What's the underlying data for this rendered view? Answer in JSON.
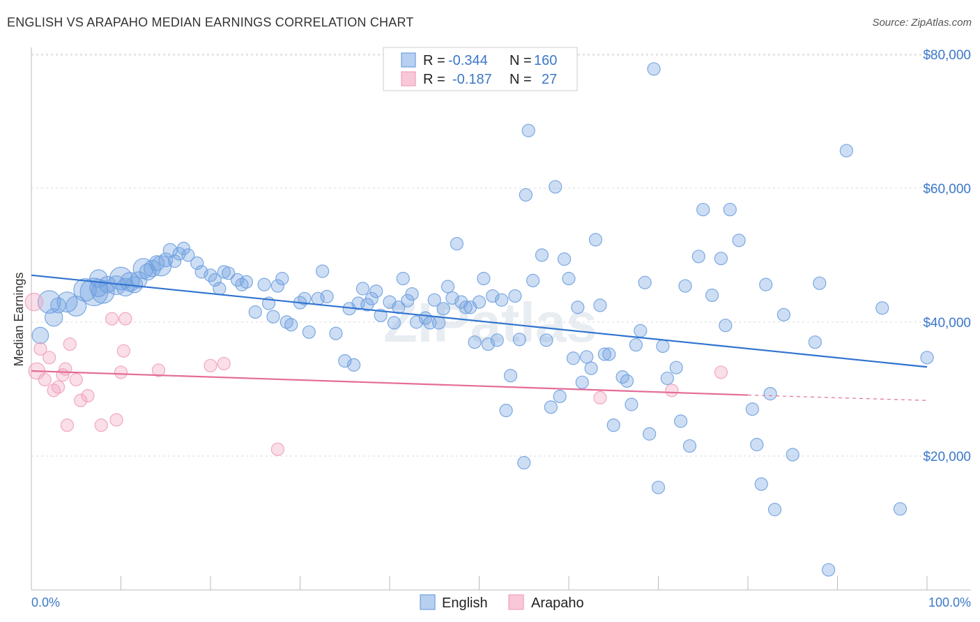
{
  "title": "ENGLISH VS ARAPAHO MEDIAN EARNINGS CORRELATION CHART",
  "source": "Source: ZipAtlas.com",
  "watermark": "ZIPatlas",
  "colors": {
    "english": "#6fa0e0",
    "english_line": "#2f73d0",
    "arapaho": "#f0a0bc",
    "arapaho_line": "#e46c96",
    "tick_text": "#3b78c9"
  },
  "legend": {
    "rows": [
      {
        "r_label": "R = ",
        "r_value": "-0.344",
        "n_label": "N = ",
        "n_value": "160"
      },
      {
        "r_label": "R = ",
        "r_value": "-0.187",
        "n_label": "N = ",
        "n_value": "27"
      }
    ]
  },
  "bottom_legend": {
    "english": "English",
    "arapaho": "Arapaho"
  },
  "chart_data": {
    "type": "scatter",
    "title": "ENGLISH VS ARAPAHO MEDIAN EARNINGS CORRELATION CHART",
    "xlabel": "",
    "ylabel": "Median Earnings",
    "xlim": [
      0,
      100
    ],
    "ylim": [
      0,
      80000
    ],
    "x_tick_labels": [
      "0.0%",
      "100.0%"
    ],
    "y_ticks": [
      20000,
      40000,
      60000,
      80000
    ],
    "y_tick_labels": [
      "$20,000",
      "$40,000",
      "$60,000",
      "$80,000"
    ],
    "grid": true,
    "series": [
      {
        "name": "English",
        "r": -0.344,
        "n": 160,
        "trend": {
          "x": [
            0,
            100
          ],
          "y": [
            47000,
            33300
          ]
        },
        "points": [
          [
            1,
            38000,
            1.3
          ],
          [
            2,
            43000,
            1.8
          ],
          [
            2.5,
            40700,
            1.4
          ],
          [
            3,
            42500,
            1.2
          ],
          [
            4,
            43000,
            1.6
          ],
          [
            5,
            42400,
            1.6
          ],
          [
            6,
            44800,
            1.8
          ],
          [
            7,
            44500,
            2.2
          ],
          [
            7.5,
            45100,
            1.4
          ],
          [
            8,
            44500,
            1.8
          ],
          [
            7.5,
            46500,
            1.4
          ],
          [
            8.5,
            45600,
            1.3
          ],
          [
            9.5,
            45500,
            1.5
          ],
          [
            10,
            46500,
            1.8
          ],
          [
            10.5,
            45200,
            1.4
          ],
          [
            11,
            46000,
            1.5
          ],
          [
            11.5,
            45600,
            1.3
          ],
          [
            12,
            46300,
            1.3
          ],
          [
            12.5,
            48000,
            1.6
          ],
          [
            13,
            47500,
            1.3
          ],
          [
            13.5,
            48000,
            1.3
          ],
          [
            14,
            48800,
            1.2
          ],
          [
            14.5,
            48400,
            1.6
          ],
          [
            15,
            49300,
            1.1
          ],
          [
            15.5,
            50700,
            1.1
          ],
          [
            16,
            49100,
            1.0
          ],
          [
            16.5,
            50200,
            1.0
          ],
          [
            17,
            51000,
            1.0
          ],
          [
            17.5,
            50000,
            1.0
          ],
          [
            18.5,
            48800,
            1.0
          ],
          [
            19,
            47500,
            1.0
          ],
          [
            20,
            47000,
            1.0
          ],
          [
            20.5,
            46300,
            1.0
          ],
          [
            21,
            45000,
            1.0
          ],
          [
            21.5,
            47500,
            1.0
          ],
          [
            22,
            47300,
            1.0
          ],
          [
            23,
            46300,
            1.0
          ],
          [
            23.5,
            45600,
            1.0
          ],
          [
            24,
            46000,
            1.0
          ],
          [
            25,
            41500,
            1.0
          ],
          [
            26,
            45600,
            1.0
          ],
          [
            26.5,
            42800,
            1.0
          ],
          [
            27,
            40800,
            1.0
          ],
          [
            27.5,
            45400,
            1.0
          ],
          [
            28,
            46500,
            1.0
          ],
          [
            28.5,
            40000,
            1.0
          ],
          [
            29,
            39600,
            1.0
          ],
          [
            30,
            42900,
            1.0
          ],
          [
            30.5,
            43500,
            1.0
          ],
          [
            31,
            38500,
            1.0
          ],
          [
            32,
            43500,
            1.0
          ],
          [
            32.5,
            47600,
            1.0
          ],
          [
            33,
            43800,
            1.0
          ],
          [
            34,
            38300,
            1.0
          ],
          [
            35,
            34200,
            1.0
          ],
          [
            35.5,
            42000,
            1.0
          ],
          [
            36,
            33600,
            1.0
          ],
          [
            36.5,
            42800,
            1.0
          ],
          [
            37,
            45000,
            1.0
          ],
          [
            37.5,
            42600,
            1.0
          ],
          [
            38,
            43500,
            1.0
          ],
          [
            38.5,
            44600,
            1.0
          ],
          [
            39,
            41000,
            1.0
          ],
          [
            40,
            43000,
            1.0
          ],
          [
            40.5,
            39900,
            1.0
          ],
          [
            41,
            42200,
            1.0
          ],
          [
            41.5,
            46500,
            1.0
          ],
          [
            42,
            43200,
            1.0
          ],
          [
            42.5,
            44200,
            1.0
          ],
          [
            43,
            40000,
            1.0
          ],
          [
            44,
            40600,
            1.0
          ],
          [
            44.5,
            39900,
            1.0
          ],
          [
            45,
            43300,
            1.0
          ],
          [
            45.5,
            39900,
            1.0
          ],
          [
            46,
            42000,
            1.0
          ],
          [
            46.5,
            45300,
            1.0
          ],
          [
            47,
            43600,
            1.0
          ],
          [
            47.5,
            51700,
            1.0
          ],
          [
            48,
            43000,
            1.0
          ],
          [
            48.5,
            42200,
            1.0
          ],
          [
            49,
            42200,
            1.0
          ],
          [
            49.5,
            37000,
            1.0
          ],
          [
            50,
            43000,
            1.0
          ],
          [
            50.5,
            46500,
            1.0
          ],
          [
            51,
            36700,
            1.0
          ],
          [
            51.5,
            43900,
            1.0
          ],
          [
            52,
            37300,
            1.0
          ],
          [
            52.5,
            43300,
            1.0
          ],
          [
            53,
            26800,
            1.0
          ],
          [
            53.5,
            32000,
            1.0
          ],
          [
            54,
            43900,
            1.0
          ],
          [
            54.5,
            37400,
            1.0
          ],
          [
            55,
            19000,
            1.0
          ],
          [
            55.5,
            68600,
            1.0
          ],
          [
            55.2,
            59000,
            1.0
          ],
          [
            56,
            46200,
            1.0
          ],
          [
            57,
            50000,
            1.0
          ],
          [
            57.5,
            37300,
            1.0
          ],
          [
            58,
            27300,
            1.0
          ],
          [
            58.5,
            60200,
            1.0
          ],
          [
            59,
            28900,
            1.0
          ],
          [
            59.5,
            49400,
            1.0
          ],
          [
            60,
            46500,
            1.0
          ],
          [
            60.5,
            34600,
            1.0
          ],
          [
            61,
            42200,
            1.0
          ],
          [
            61.5,
            31000,
            1.0
          ],
          [
            62,
            34800,
            1.0
          ],
          [
            62.5,
            33100,
            1.0
          ],
          [
            63,
            52300,
            1.0
          ],
          [
            63.5,
            42500,
            1.0
          ],
          [
            64,
            35200,
            1.0
          ],
          [
            64.5,
            35200,
            1.0
          ],
          [
            65,
            24600,
            1.0
          ],
          [
            66,
            31800,
            1.0
          ],
          [
            66.5,
            31200,
            1.0
          ],
          [
            67,
            27700,
            1.0
          ],
          [
            67.5,
            36600,
            1.0
          ],
          [
            68,
            38700,
            1.0
          ],
          [
            68.5,
            45900,
            1.0
          ],
          [
            69,
            23300,
            1.0
          ],
          [
            69.5,
            77800,
            1.0
          ],
          [
            70,
            15300,
            1.0
          ],
          [
            70.5,
            36400,
            1.0
          ],
          [
            71,
            31600,
            1.0
          ],
          [
            72,
            33200,
            1.0
          ],
          [
            72.5,
            25200,
            1.0
          ],
          [
            73,
            45400,
            1.0
          ],
          [
            73.5,
            21500,
            1.0
          ],
          [
            74.5,
            49800,
            1.0
          ],
          [
            75,
            56800,
            1.0
          ],
          [
            76,
            44000,
            1.0
          ],
          [
            77,
            49500,
            1.0
          ],
          [
            77.5,
            39500,
            1.0
          ],
          [
            78,
            56800,
            1.0
          ],
          [
            79,
            52200,
            1.0
          ],
          [
            80.5,
            27000,
            1.0
          ],
          [
            81,
            21700,
            1.0
          ],
          [
            81.5,
            15800,
            1.0
          ],
          [
            82,
            45600,
            1.0
          ],
          [
            82.5,
            29300,
            1.0
          ],
          [
            83,
            12000,
            1.0
          ],
          [
            84,
            41100,
            1.0
          ],
          [
            85,
            20200,
            1.0
          ],
          [
            87.5,
            37000,
            1.0
          ],
          [
            88,
            45800,
            1.0
          ],
          [
            89,
            3000,
            1.0
          ],
          [
            91,
            65600,
            1.0
          ],
          [
            95,
            42100,
            1.0
          ],
          [
            97,
            12100,
            1.0
          ],
          [
            100,
            34700,
            1.0
          ]
        ]
      },
      {
        "name": "Arapaho",
        "r": -0.187,
        "n": 27,
        "trend": {
          "x": [
            0,
            80
          ],
          "y": [
            32700,
            29100
          ]
        },
        "trend_dashed_to": {
          "x": 100,
          "y": 28300
        },
        "points": [
          [
            0.3,
            43000,
            1.4
          ],
          [
            0.6,
            32700,
            1.3
          ],
          [
            1,
            36000,
            1.0
          ],
          [
            1.5,
            31400,
            1.0
          ],
          [
            2,
            34700,
            1.0
          ],
          [
            2.5,
            29800,
            1.0
          ],
          [
            3,
            30300,
            1.0
          ],
          [
            3.5,
            32100,
            1.0
          ],
          [
            3.8,
            33000,
            1.0
          ],
          [
            4,
            24600,
            1.0
          ],
          [
            4.3,
            36700,
            1.0
          ],
          [
            5,
            31400,
            1.0
          ],
          [
            5.5,
            28300,
            1.0
          ],
          [
            6.3,
            29000,
            1.0
          ],
          [
            7.8,
            24600,
            1.0
          ],
          [
            9,
            40500,
            1.0
          ],
          [
            9.5,
            25400,
            1.0
          ],
          [
            10,
            32500,
            1.0
          ],
          [
            10.3,
            35700,
            1.0
          ],
          [
            10.5,
            40500,
            1.0
          ],
          [
            14.2,
            32800,
            1.0
          ],
          [
            20,
            33500,
            1.0
          ],
          [
            21.5,
            33800,
            1.0
          ],
          [
            27.5,
            21000,
            1.0
          ],
          [
            63.5,
            28700,
            1.0
          ],
          [
            71.5,
            29800,
            1.0
          ],
          [
            77,
            32500,
            1.0
          ]
        ]
      }
    ]
  }
}
